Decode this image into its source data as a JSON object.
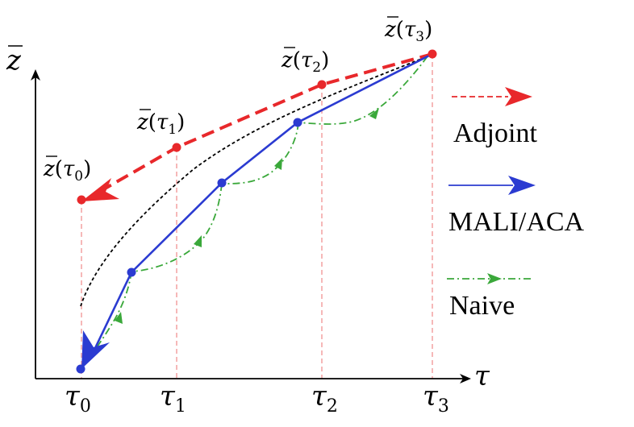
{
  "axes": {
    "y_label": "z",
    "x_label": "τ"
  },
  "ticks": [
    {
      "base": "τ",
      "sub": "0"
    },
    {
      "base": "τ",
      "sub": "1"
    },
    {
      "base": "τ",
      "sub": "2"
    },
    {
      "base": "τ",
      "sub": "3"
    }
  ],
  "adjoint_point_labels": [
    {
      "fn": "z",
      "arg": "τ",
      "sub": "0"
    },
    {
      "fn": "z",
      "arg": "τ",
      "sub": "1"
    },
    {
      "fn": "z",
      "arg": "τ",
      "sub": "2"
    },
    {
      "fn": "z",
      "arg": "τ",
      "sub": "3"
    }
  ],
  "legend": {
    "adjoint": "Adjoint",
    "mali": "MALI/ACA",
    "naive": "Naive"
  },
  "colors": {
    "adjoint": "#e8282b",
    "mali": "#2b3bd1",
    "naive": "#3aa83a",
    "guide": "#f4a6a6",
    "true_path": "#000000"
  }
}
